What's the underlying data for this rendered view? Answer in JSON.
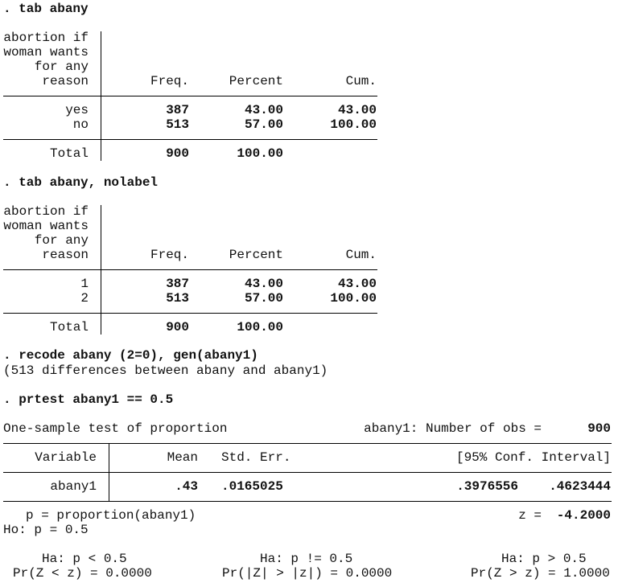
{
  "tab1": {
    "command": ". tab abany",
    "stub_label": [
      "abortion if",
      "woman wants",
      "for any",
      "reason"
    ],
    "headers": [
      "Freq.",
      "Percent",
      "Cum."
    ],
    "rows": [
      {
        "label": "yes",
        "freq": "387",
        "percent": "43.00",
        "cum": "43.00"
      },
      {
        "label": "no",
        "freq": "513",
        "percent": "57.00",
        "cum": "100.00"
      }
    ],
    "total": {
      "label": "Total",
      "freq": "900",
      "percent": "100.00"
    }
  },
  "tab2": {
    "command": ". tab abany, nolabel",
    "stub_label": [
      "abortion if",
      "woman wants",
      "for any",
      "reason"
    ],
    "headers": [
      "Freq.",
      "Percent",
      "Cum."
    ],
    "rows": [
      {
        "label": "1",
        "freq": "387",
        "percent": "43.00",
        "cum": "43.00"
      },
      {
        "label": "2",
        "freq": "513",
        "percent": "57.00",
        "cum": "100.00"
      }
    ],
    "total": {
      "label": "Total",
      "freq": "900",
      "percent": "100.00"
    }
  },
  "recode": {
    "command": ". recode abany (2=0), gen(abany1)",
    "message": "(513 differences between abany and abany1)"
  },
  "prtest": {
    "command": ". prtest abany1 == 0.5",
    "title": "One-sample test of proportion",
    "obs_label": "abany1: Number of obs =",
    "obs_value": "900",
    "headers": {
      "variable": "Variable",
      "mean": "Mean",
      "se": "Std. Err.",
      "ci": "[95% Conf. Interval]"
    },
    "row": {
      "variable": "abany1",
      "mean": ".43",
      "se": ".0165025",
      "ci_low": ".3976556",
      "ci_high": ".4623444"
    },
    "p_def": "p = proportion(abany1)",
    "z_label": "z =",
    "z_value": "-4.2000",
    "ho": "Ho: p = 0.5",
    "alternatives": [
      {
        "ha": "Ha: p < 0.5",
        "pr": "Pr(Z < z) = 0.0000"
      },
      {
        "ha": "Ha: p != 0.5",
        "pr": "Pr(|Z| > |z|) = 0.0000"
      },
      {
        "ha": "Ha: p > 0.5",
        "pr": "Pr(Z > z) = 1.0000"
      }
    ]
  }
}
